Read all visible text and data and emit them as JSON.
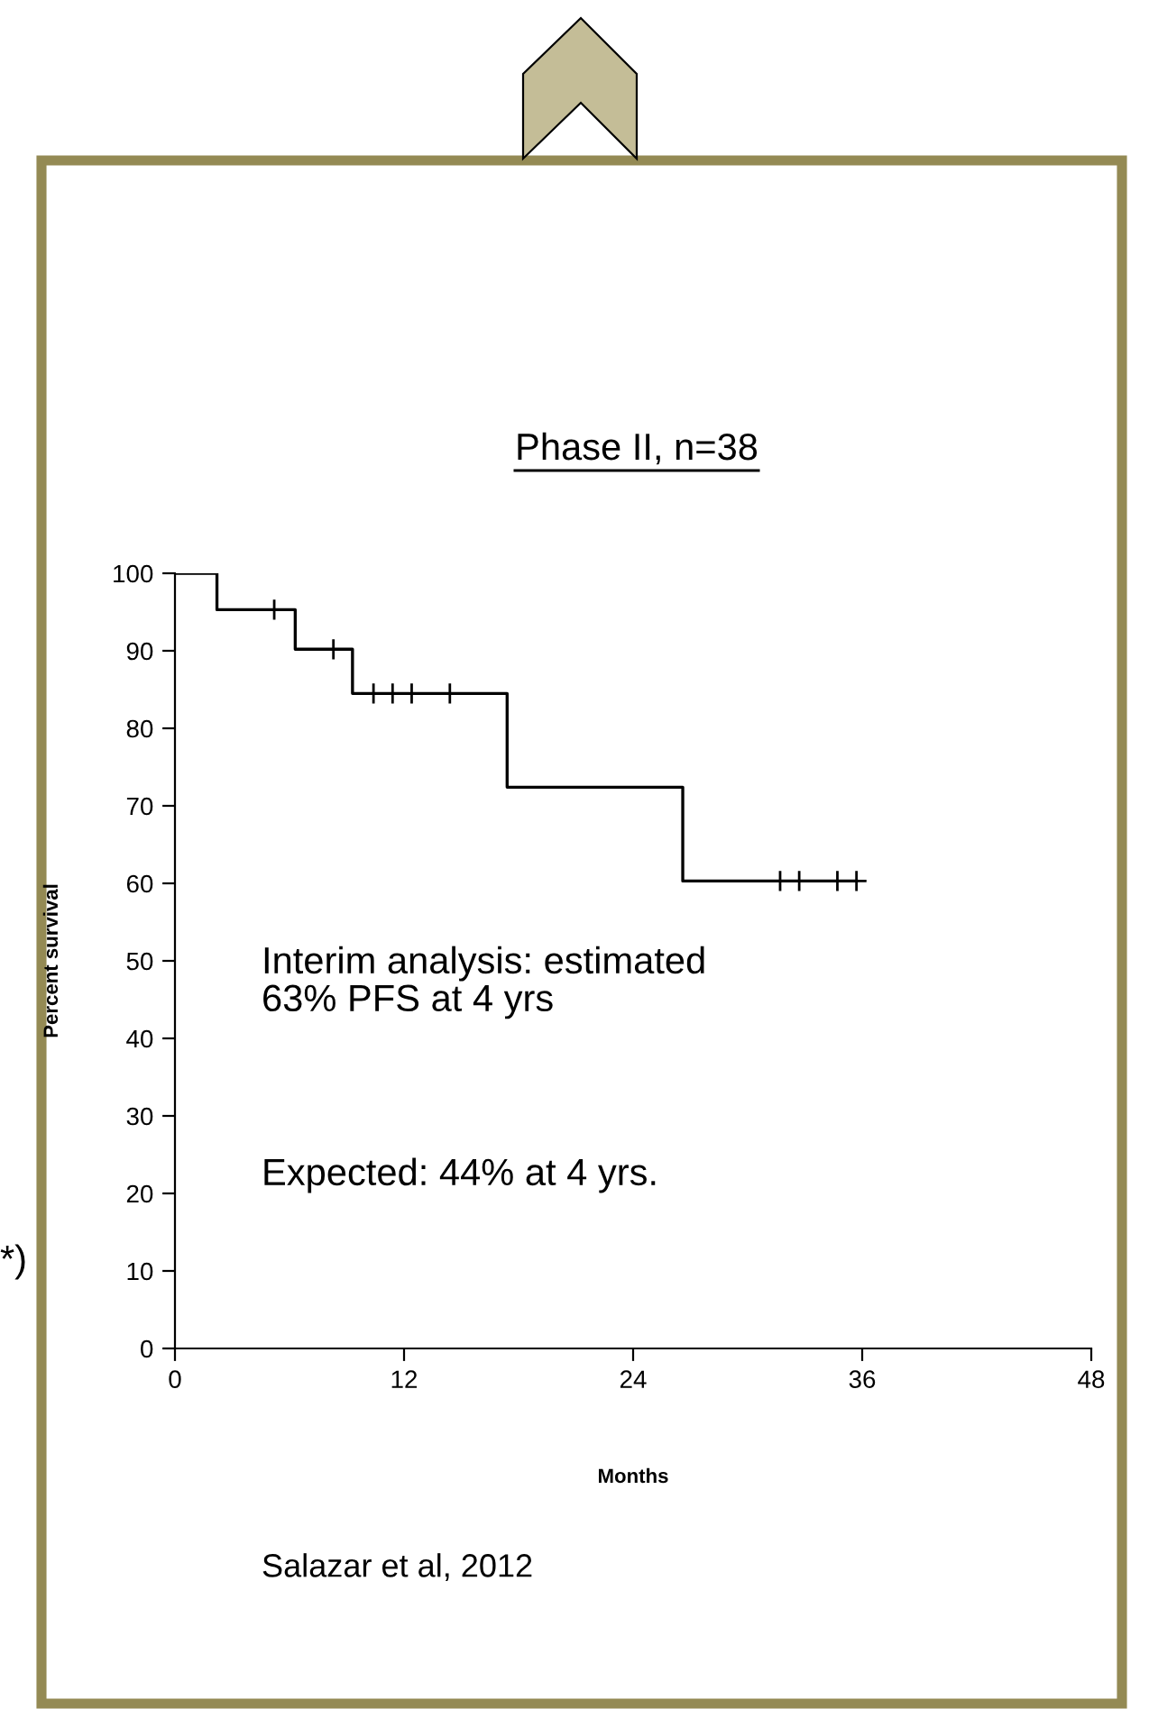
{
  "chart_data": {
    "type": "step",
    "title": "Phase II, n=38",
    "xlabel": "Months",
    "ylabel": "Percent survival",
    "series": [
      {
        "color": "#000000",
        "x": [
          0,
          2.2,
          6.3,
          9.3,
          17.4,
          26.6,
          35.7
        ],
        "values": [
          100,
          95.3,
          90.2,
          84.5,
          72.4,
          60.3,
          60.3
        ]
      },
      {
        "type": "scatter",
        "marker": "cross",
        "color": "#000000",
        "x": [
          5.2,
          8.3,
          10.4,
          11.4,
          12.4,
          14.4,
          31.7,
          32.7,
          34.7,
          35.7
        ],
        "values": [
          95.3,
          90.2,
          84.5,
          84.5,
          84.5,
          84.5,
          60.3,
          60.3,
          60.3,
          60.3
        ]
      }
    ],
    "xlim": [
      0,
      48
    ],
    "xticks": [
      0,
      12,
      24,
      36,
      48
    ],
    "ylim": [
      0,
      100
    ],
    "yticks": [
      0,
      10,
      20,
      30,
      40,
      50,
      60,
      70,
      80,
      90,
      100
    ],
    "annotations": [
      "Interim analysis: estimated\n63% PFS at 4 yrs",
      "Expected: 44% at 4 yrs.",
      "Salazar et al, 2012",
      "*)"
    ]
  }
}
